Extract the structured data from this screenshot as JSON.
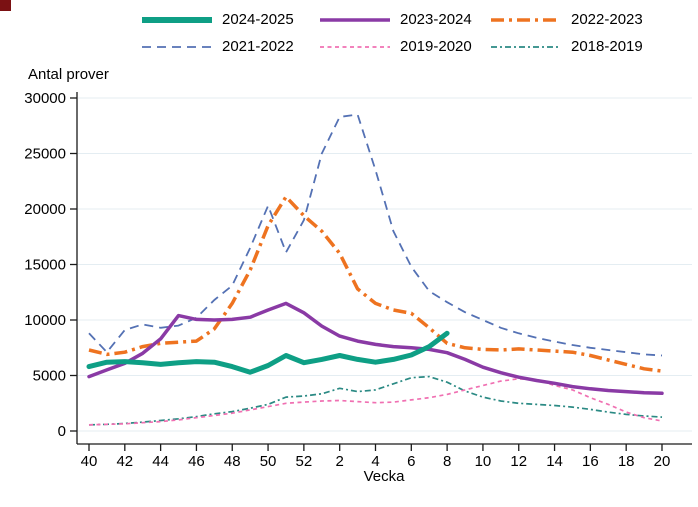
{
  "page": {
    "background": "#ffffff",
    "corner_square_color": "#7b1113"
  },
  "chart_data": {
    "type": "line",
    "title": "",
    "xlabel": "Vecka",
    "ylabel": "Antal prover",
    "x_categories": [
      40,
      41,
      42,
      43,
      44,
      45,
      46,
      47,
      48,
      49,
      50,
      51,
      52,
      1,
      2,
      3,
      4,
      5,
      6,
      7,
      8,
      9,
      10,
      11,
      12,
      13,
      14,
      15,
      16,
      17,
      18,
      19,
      20
    ],
    "x_tick_indices": [
      0,
      2,
      4,
      6,
      8,
      10,
      12,
      14,
      16,
      18,
      20,
      22,
      24,
      26,
      28,
      30,
      32
    ],
    "x_tick_labels": [
      "40",
      "42",
      "44",
      "46",
      "48",
      "50",
      "52",
      "2",
      "4",
      "6",
      "8",
      "10",
      "12",
      "14",
      "16",
      "18",
      "20"
    ],
    "y_ticks": [
      0,
      5000,
      10000,
      15000,
      20000,
      25000,
      30000
    ],
    "y_tick_labels": [
      "0",
      "5000",
      "10000",
      "15000",
      "20000",
      "25000",
      "30000"
    ],
    "ylim": [
      0,
      30000
    ],
    "grid": "horizontal-light",
    "grid_color": "#e4edf2",
    "axis_color": "#1a1a1a",
    "legend_position": "top",
    "series": [
      {
        "name": "2024-2025",
        "color": "#0e9f85",
        "style": "solid-thick",
        "values": [
          5800,
          6200,
          6250,
          6150,
          6000,
          6150,
          6250,
          6200,
          5800,
          5300,
          5900,
          6800,
          6150,
          6450,
          6800,
          6450,
          6200,
          6450,
          6850,
          7600,
          8800
        ]
      },
      {
        "name": "2023-2024",
        "color": "#8a3aa5",
        "style": "solid",
        "values": [
          4900,
          5500,
          6100,
          7000,
          8300,
          10400,
          10050,
          10000,
          10050,
          10250,
          10900,
          11500,
          10650,
          9450,
          8550,
          8100,
          7800,
          7600,
          7500,
          7350,
          7050,
          6450,
          5750,
          5250,
          4850,
          4550,
          4300,
          4000,
          3800,
          3650,
          3550,
          3450,
          3400
        ]
      },
      {
        "name": "2022-2023",
        "color": "#ee7320",
        "style": "dash-dot-thick",
        "values": [
          7300,
          6900,
          7100,
          7600,
          7900,
          8000,
          8100,
          9200,
          11500,
          14500,
          18500,
          21100,
          19400,
          18000,
          16000,
          12800,
          11500,
          10900,
          10600,
          9300,
          7900,
          7500,
          7350,
          7300,
          7400,
          7300,
          7200,
          7100,
          6800,
          6400,
          6000,
          5600,
          5400
        ]
      },
      {
        "name": "2021-2022",
        "color": "#5471b4",
        "style": "dashed",
        "values": [
          8800,
          7100,
          9100,
          9600,
          9300,
          9500,
          10200,
          11800,
          13100,
          16500,
          20300,
          16100,
          19000,
          25000,
          28300,
          28500,
          23500,
          18000,
          14800,
          12600,
          11600,
          10700,
          10000,
          9300,
          8800,
          8400,
          8050,
          7750,
          7500,
          7300,
          7100,
          6900,
          6800
        ]
      },
      {
        "name": "2019-2020",
        "color": "#f070b2",
        "style": "dotted",
        "values": [
          550,
          600,
          650,
          750,
          850,
          1000,
          1200,
          1400,
          1600,
          1900,
          2200,
          2500,
          2600,
          2700,
          2750,
          2650,
          2550,
          2600,
          2800,
          3000,
          3300,
          3700,
          4100,
          4500,
          4700,
          4600,
          4100,
          3700,
          3000,
          2400,
          1700,
          1200,
          900
        ]
      },
      {
        "name": "2018-2019",
        "color": "#2b8a84",
        "style": "dash-dot",
        "values": [
          550,
          600,
          680,
          800,
          950,
          1100,
          1300,
          1550,
          1750,
          2050,
          2400,
          3050,
          3150,
          3350,
          3850,
          3550,
          3700,
          4250,
          4800,
          4900,
          4400,
          3600,
          3050,
          2700,
          2500,
          2400,
          2300,
          2150,
          1950,
          1700,
          1500,
          1350,
          1250
        ]
      }
    ]
  }
}
